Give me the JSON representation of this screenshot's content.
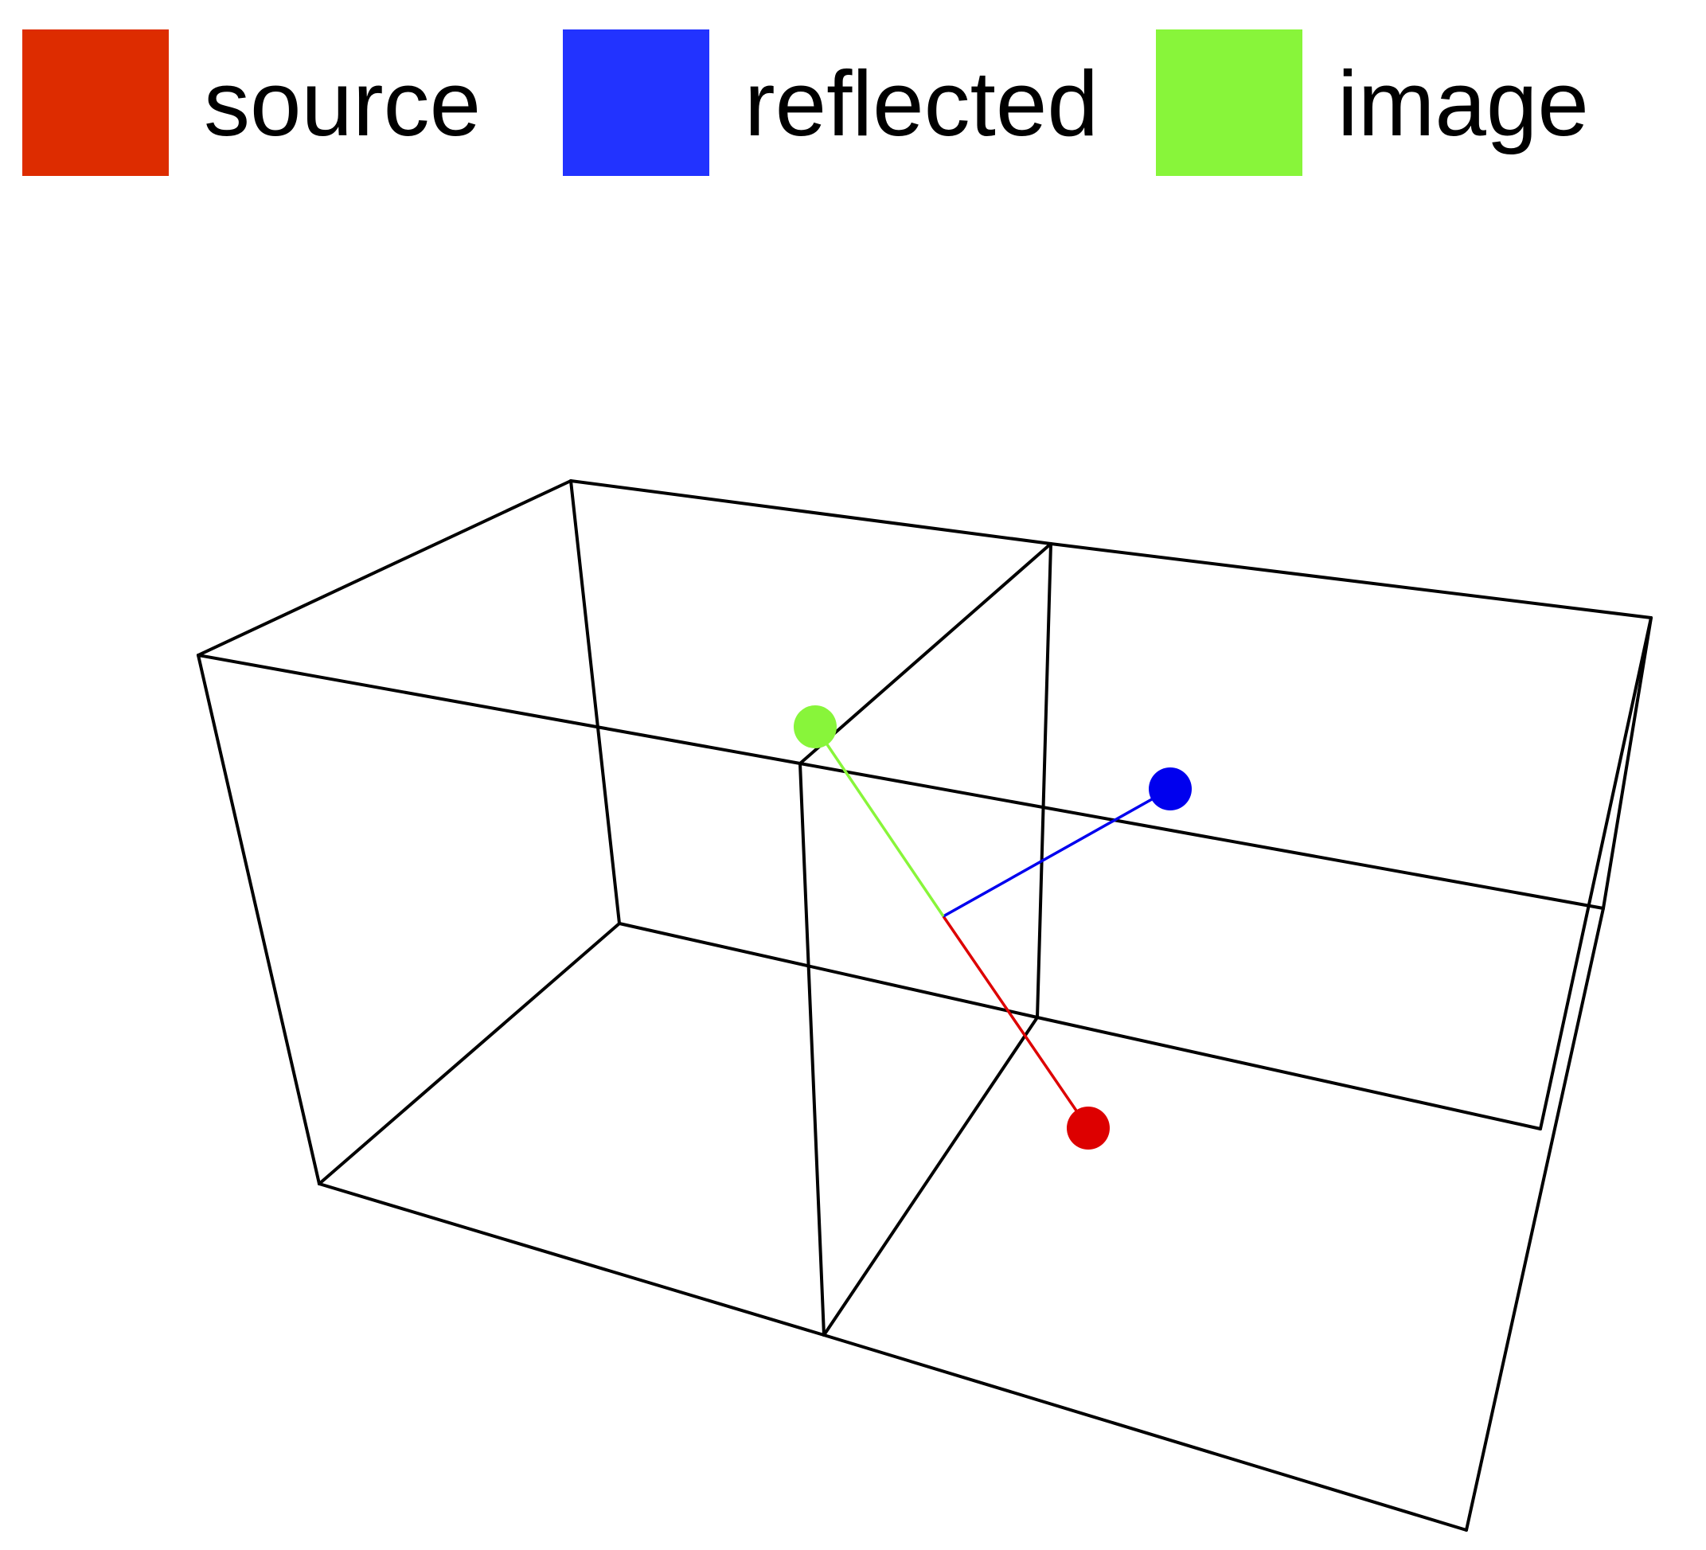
{
  "legend": {
    "items": [
      {
        "label": "source",
        "color": "#DD2C00"
      },
      {
        "label": "reflected",
        "color": "#2233FF"
      },
      {
        "label": "image",
        "color": "#88F53A"
      }
    ]
  },
  "diagram": {
    "box_color": "#000000",
    "markers": {
      "source_color": "#DD0000",
      "reflected_color": "#0000EE",
      "image_color": "#88F53A"
    },
    "rays": {
      "source_color": "#DD0000",
      "reflected_color": "#0000EE",
      "image_color": "#88F53A"
    }
  }
}
